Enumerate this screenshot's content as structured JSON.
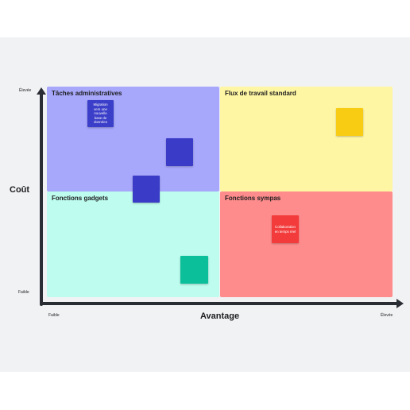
{
  "quadrants": {
    "top_left": {
      "title": "Tâches administratives",
      "color": "#a7a7fb"
    },
    "top_right": {
      "title": "Flux de travail standard",
      "color": "#fff6a3"
    },
    "bottom_left": {
      "title": "Fonctions gadgets",
      "color": "#bdfcee"
    },
    "bottom_right": {
      "title": "Fonctions sympas",
      "color": "#ff8c8c"
    }
  },
  "notes": [
    {
      "text": "Migration\nvers une\nnouvelle\nbase de\ndonnées",
      "color": "#3b3ec9"
    },
    {
      "text": "",
      "color": "#3a3cc8"
    },
    {
      "text": "",
      "color": "#3a3cc8"
    },
    {
      "text": "",
      "color": "#f7cc13"
    },
    {
      "text": "Collaboration\nen temps réel",
      "color": "#f33b3b"
    },
    {
      "text": "",
      "color": "#0bbf9b"
    }
  ],
  "axes": {
    "y_title": "Coût",
    "x_title": "Avantage",
    "y_high": "Élevée",
    "y_low": "Faible",
    "x_low": "Faible",
    "x_high": "Élevée"
  }
}
